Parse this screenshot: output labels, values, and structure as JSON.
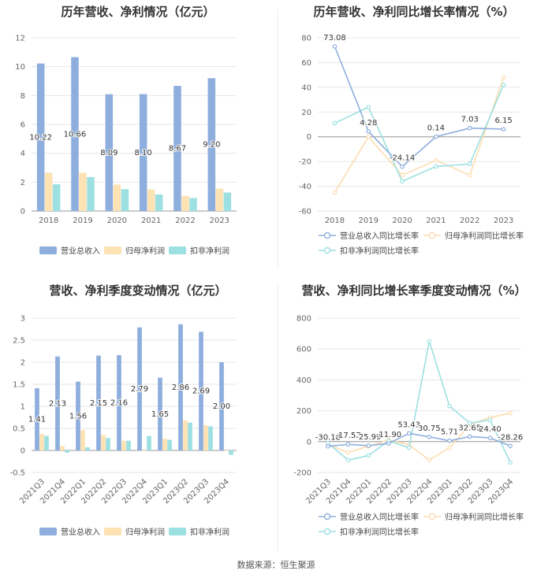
{
  "colors": {
    "revenue": "#8eaedd",
    "net_profit": "#fde2b3",
    "deducted_profit": "#9de0e2",
    "revenue_growth": "#8eaedd",
    "net_growth": "#fddcb0",
    "deducted_growth": "#9de0e2",
    "grid": "#e6e6e6",
    "axis": "#999999"
  },
  "footer": {
    "source": "数据来源：恒生聚源"
  },
  "chart_data": [
    {
      "id": "annual_values",
      "type": "bar",
      "title": "历年营收、净利情况（亿元）",
      "categories": [
        "2018",
        "2019",
        "2020",
        "2021",
        "2022",
        "2023"
      ],
      "ylim": [
        0,
        12
      ],
      "yticks": [
        0,
        2,
        4,
        6,
        8,
        10,
        12
      ],
      "series": [
        {
          "name": "营业总收入",
          "color_key": "revenue",
          "values": [
            10.22,
            10.66,
            8.09,
            8.1,
            8.67,
            9.2
          ],
          "labels": [
            "10.22",
            "10.66",
            "8.09",
            "8.10",
            "8.67",
            "9.20"
          ]
        },
        {
          "name": "归母净利润",
          "color_key": "net_profit",
          "values": [
            2.65,
            2.65,
            1.83,
            1.5,
            1.05,
            1.55
          ]
        },
        {
          "name": "扣非净利润",
          "color_key": "deducted_profit",
          "values": [
            1.85,
            2.35,
            1.52,
            1.15,
            0.9,
            1.28
          ]
        }
      ],
      "legend": [
        "营业总收入",
        "归母净利润",
        "扣非净利润"
      ]
    },
    {
      "id": "annual_growth",
      "type": "line",
      "title": "历年营收、净利同比增长率情况（%）",
      "categories": [
        "2018",
        "2019",
        "2020",
        "2021",
        "2022",
        "2023"
      ],
      "ylim": [
        -60,
        80
      ],
      "yticks": [
        -60,
        -40,
        -20,
        0,
        20,
        40,
        60,
        80
      ],
      "series": [
        {
          "name": "营业总收入同比增长率",
          "color_key": "revenue_growth",
          "values": [
            73.08,
            4.28,
            -24.14,
            0.14,
            7.03,
            6.15
          ],
          "labels": [
            "73.08",
            "4.28",
            "-24.14",
            "0.14",
            "7.03",
            "6.15"
          ]
        },
        {
          "name": "归母净利润同比增长率",
          "color_key": "net_growth",
          "values": [
            -45,
            0,
            -31,
            -19,
            -31,
            48
          ]
        },
        {
          "name": "扣非净利润同比增长率",
          "color_key": "deducted_growth",
          "values": [
            11,
            24,
            -36,
            -24,
            -22,
            42
          ]
        }
      ],
      "legend": [
        "营业总收入同比增长率",
        "归母净利润同比增长率",
        "扣非净利润同比增长率"
      ]
    },
    {
      "id": "quarterly_values",
      "type": "bar",
      "title": "营收、净利季度变动情况（亿元）",
      "categories": [
        "2021Q3",
        "2021Q4",
        "2022Q1",
        "2022Q2",
        "2022Q3",
        "2022Q4",
        "2023Q1",
        "2023Q2",
        "2023Q3",
        "2023Q4"
      ],
      "ylim": [
        -0.5,
        3
      ],
      "yticks": [
        -0.5,
        0,
        0.5,
        1,
        1.5,
        2,
        2.5,
        3
      ],
      "series": [
        {
          "name": "营业总收入",
          "color_key": "revenue",
          "values": [
            1.41,
            2.13,
            1.56,
            2.15,
            2.16,
            2.79,
            1.65,
            2.86,
            2.69,
            2.0
          ],
          "labels": [
            "1.41",
            "2.13",
            "1.56",
            "2.15",
            "2.16",
            "2.79",
            "1.65",
            "2.86",
            "2.69",
            "2.00"
          ]
        },
        {
          "name": "归母净利润",
          "color_key": "net_profit",
          "values": [
            0.37,
            0.1,
            0.46,
            0.35,
            0.22,
            0.0,
            0.27,
            0.68,
            0.57,
            0.0
          ]
        },
        {
          "name": "扣非净利润",
          "color_key": "deducted_profit",
          "values": [
            0.33,
            -0.05,
            0.07,
            0.28,
            0.22,
            0.33,
            0.24,
            0.63,
            0.55,
            -0.1
          ]
        }
      ],
      "legend": [
        "营业总收入",
        "归母净利润",
        "扣非净利润"
      ]
    },
    {
      "id": "quarterly_growth",
      "type": "line",
      "title": "营收、净利同比增长率季度变动情况（%）",
      "categories": [
        "2021Q3",
        "2021Q4",
        "2022Q1",
        "2022Q2",
        "2022Q3",
        "2022Q4",
        "2023Q1",
        "2023Q2",
        "2023Q3",
        "2023Q4"
      ],
      "ylim": [
        -200,
        800
      ],
      "yticks": [
        -200,
        0,
        200,
        400,
        600,
        800
      ],
      "series": [
        {
          "name": "营业总收入同比增长率",
          "color_key": "revenue_growth",
          "values": [
            -30.18,
            -17.57,
            -25.99,
            -11.9,
            53.43,
            30.75,
            5.71,
            32.65,
            24.4,
            -28.26
          ],
          "labels": [
            "-30.18",
            "-17.57",
            "-25.99",
            "-11.90",
            "53.43",
            "30.75",
            "5.71",
            "32.65",
            "24.40",
            "-28.26"
          ]
        },
        {
          "name": "归母净利润同比增长率",
          "color_key": "net_growth",
          "values": [
            -20,
            -70,
            -30,
            10,
            -20,
            -120,
            -40,
            110,
            155,
            185
          ]
        },
        {
          "name": "扣非净利润同比增长率",
          "color_key": "deducted_growth",
          "values": [
            -10,
            -120,
            -90,
            5,
            -40,
            650,
            230,
            120,
            140,
            -135
          ]
        }
      ],
      "legend": [
        "营业总收入同比增长率",
        "归母净利润同比增长率",
        "扣非净利润同比增长率"
      ]
    }
  ]
}
